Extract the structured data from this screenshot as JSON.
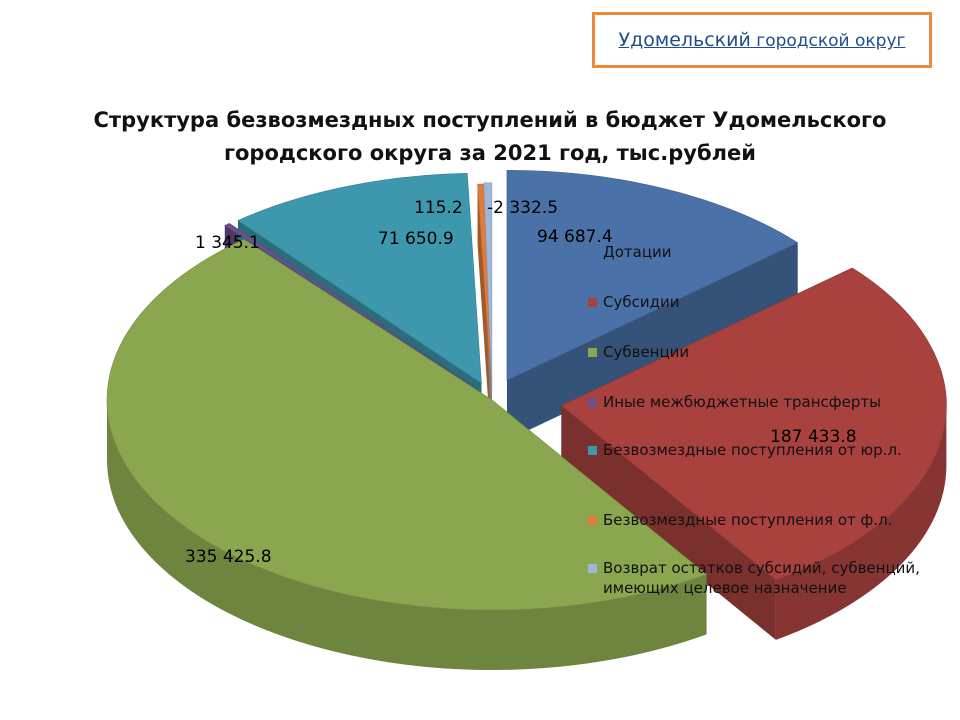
{
  "header": {
    "org_main": "Удомельский",
    "org_rest": " городской округ"
  },
  "chart_data": {
    "type": "pie",
    "title_line1": "Структура безвозмездных поступлений в бюджет Удомельского",
    "title_line2": "городского округа за 2021 год, тыс.рублей",
    "legend_position": "right",
    "three_d": true,
    "exploded": true,
    "slices": [
      {
        "name": "Дотации",
        "value": 94687.4,
        "label": "94 687.4",
        "color": "#4a72a8"
      },
      {
        "name": "Субсидии",
        "value": 187433.8,
        "label": "187 433.8",
        "color": "#a9423e"
      },
      {
        "name": "Субвенции",
        "value": 335425.8,
        "label": "335 425.8",
        "color": "#8aa64f"
      },
      {
        "name": "Иные межбюджетные трансферты",
        "value": 1345.1,
        "label": "1 345.1",
        "color": "#6a5189"
      },
      {
        "name": "Безвозмездные поступления от юр.л.",
        "value": 71650.9,
        "label": "71 650.9",
        "color": "#3d98ae"
      },
      {
        "name": "Безвозмездные поступления от  ф.л.",
        "value": 115.2,
        "label": "115.2",
        "color": "#e07b39"
      },
      {
        "name": "Возврат остатков субсидий, субвенций, имеющих целевое назначение",
        "value": -2332.5,
        "label": "-2 332.5",
        "color": "#9fb6d8"
      }
    ]
  }
}
